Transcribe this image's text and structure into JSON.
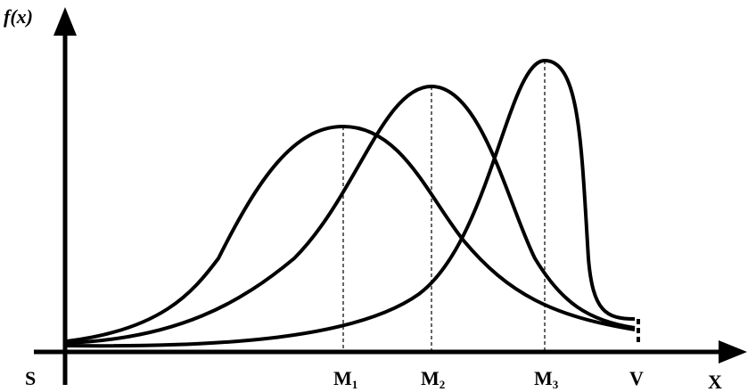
{
  "y_axis_label": "f(x)",
  "x_axis_label": "X",
  "origin_label": "S",
  "markers": [
    {
      "text": "M",
      "sub": "1"
    },
    {
      "text": "M",
      "sub": "2"
    },
    {
      "text": "M",
      "sub": "3"
    }
  ],
  "end_label": "V"
}
